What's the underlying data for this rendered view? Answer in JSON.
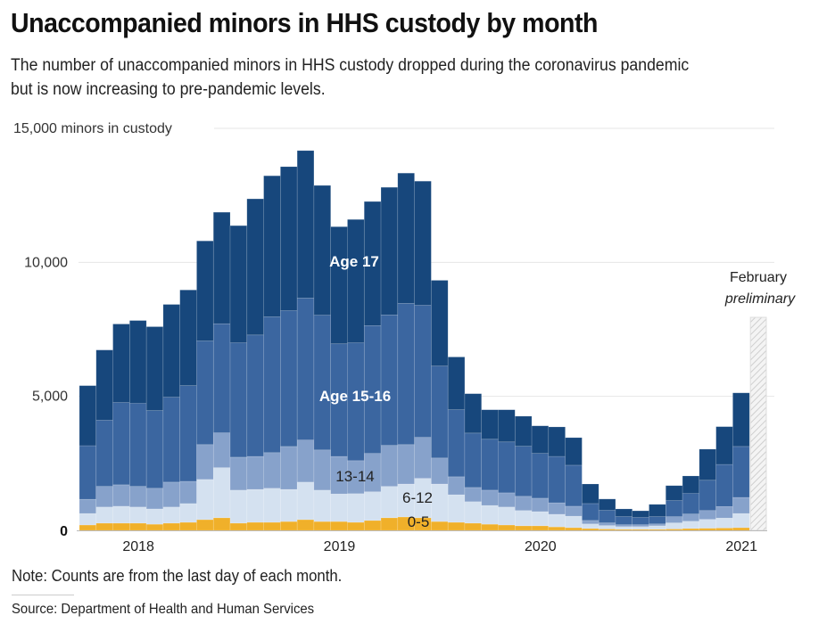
{
  "header": {
    "title": "Unaccompanied minors in HHS custody by month",
    "subtitle": "The number of unaccompanied minors in HHS custody dropped during the coronavirus pandemic but is now increasing to pre-pandemic levels."
  },
  "footer": {
    "note": "Note: Counts are from the last day of each month.",
    "source": "Source: Department of Health and Human Services"
  },
  "chart_data": {
    "type": "bar",
    "stacked": true,
    "title": "Unaccompanied minors in HHS custody by month",
    "ylabel": "minors in custody",
    "ylim": [
      0,
      15000
    ],
    "yticks": [
      0,
      5000,
      10000,
      15000
    ],
    "ytick_labels": [
      "0",
      "5,000",
      "10,000",
      "15,000 minors in custody"
    ],
    "xtick_labels": [
      "2018",
      "2019",
      "2020",
      "2021"
    ],
    "grid": true,
    "categories": [
      "Oct 2017",
      "Nov 2017",
      "Dec 2017",
      "Jan 2018",
      "Feb 2018",
      "Mar 2018",
      "Apr 2018",
      "May 2018",
      "Jun 2018",
      "Jul 2018",
      "Aug 2018",
      "Sep 2018",
      "Oct 2018",
      "Nov 2018",
      "Dec 2018",
      "Jan 2019",
      "Feb 2019",
      "Mar 2019",
      "Apr 2019",
      "May 2019",
      "Jun 2019",
      "Jul 2019",
      "Aug 2019",
      "Sep 2019",
      "Oct 2019",
      "Nov 2019",
      "Dec 2019",
      "Jan 2020",
      "Feb 2020",
      "Mar 2020",
      "Apr 2020",
      "May 2020",
      "Jun 2020",
      "Jul 2020",
      "Aug 2020",
      "Sep 2020",
      "Oct 2020",
      "Nov 2020",
      "Dec 2020",
      "Jan 2021"
    ],
    "series": [
      {
        "name": "0-5",
        "color": "#f0b02a",
        "values": [
          200,
          270,
          270,
          270,
          230,
          270,
          300,
          400,
          470,
          270,
          300,
          300,
          330,
          400,
          330,
          330,
          300,
          370,
          470,
          500,
          470,
          330,
          300,
          270,
          230,
          200,
          170,
          170,
          130,
          100,
          70,
          50,
          40,
          40,
          40,
          50,
          70,
          80,
          90,
          100
        ]
      },
      {
        "name": "6-12",
        "color": "#d4e1f0",
        "values": [
          430,
          600,
          630,
          600,
          570,
          600,
          700,
          1500,
          1870,
          1230,
          1230,
          1270,
          1200,
          1400,
          1170,
          1030,
          1070,
          1070,
          1170,
          1230,
          1470,
          1400,
          1030,
          800,
          700,
          670,
          570,
          530,
          470,
          430,
          170,
          130,
          100,
          100,
          130,
          230,
          270,
          330,
          370,
          530
        ]
      },
      {
        "name": "13-14",
        "color": "#87a2cb",
        "values": [
          530,
          770,
          800,
          770,
          770,
          930,
          830,
          1300,
          1300,
          1230,
          1230,
          1330,
          1600,
          1570,
          1500,
          1400,
          1230,
          1430,
          1530,
          1470,
          1530,
          970,
          670,
          530,
          570,
          530,
          530,
          500,
          430,
          370,
          130,
          100,
          70,
          70,
          70,
          230,
          270,
          330,
          430,
          600
        ]
      },
      {
        "name": "Age 15-16",
        "color": "#3b66a0",
        "values": [
          2000,
          2470,
          3070,
          3100,
          2900,
          3170,
          3570,
          3870,
          4070,
          4270,
          4530,
          5070,
          5070,
          5300,
          5030,
          4200,
          4400,
          4770,
          4870,
          5270,
          4930,
          3430,
          2500,
          2030,
          1900,
          1900,
          1870,
          1670,
          1730,
          1530,
          630,
          470,
          300,
          270,
          270,
          600,
          770,
          1130,
          1570,
          1900
        ]
      },
      {
        "name": "Age 17",
        "color": "#17477c",
        "values": [
          2240,
          2620,
          2930,
          3090,
          3130,
          3460,
          3570,
          3730,
          4160,
          4370,
          5080,
          5260,
          5370,
          5500,
          4840,
          4370,
          4600,
          4630,
          4760,
          4860,
          4630,
          3200,
          1970,
          1470,
          1100,
          1200,
          1120,
          1030,
          1100,
          1030,
          730,
          420,
          290,
          250,
          460,
          560,
          650,
          1160,
          1410,
          2000
        ]
      }
    ],
    "preliminary": {
      "label_line1": "February",
      "label_line2": "preliminary",
      "category": "Feb 2021",
      "note": "hatched preliminary bar, value not shown"
    },
    "series_labels": [
      {
        "series": "Age 17",
        "text": "Age 17",
        "color": "#ffffff",
        "anchor_index": 16,
        "value": 10000
      },
      {
        "series": "Age 15-16",
        "text": "Age 15-16",
        "color": "#ffffff",
        "anchor_index": 16,
        "value": 5000
      },
      {
        "series": "13-14",
        "text": "13-14",
        "color": "#222222",
        "anchor_index": 16,
        "value": 2000
      },
      {
        "series": "6-12",
        "text": "6-12",
        "color": "#222222",
        "anchor_index": 20,
        "value": 1150
      },
      {
        "series": "0-5",
        "text": "0-5",
        "color": "#222222",
        "anchor_index": 20,
        "value": 330
      }
    ],
    "year_tick_index": {
      "2018": 3.5,
      "2019": 15.5,
      "2020": 27.5,
      "2021": 39.5
    },
    "colors": {
      "grid": "#e6e6e6",
      "hatch": "#cccccc",
      "text": "#222222"
    }
  }
}
